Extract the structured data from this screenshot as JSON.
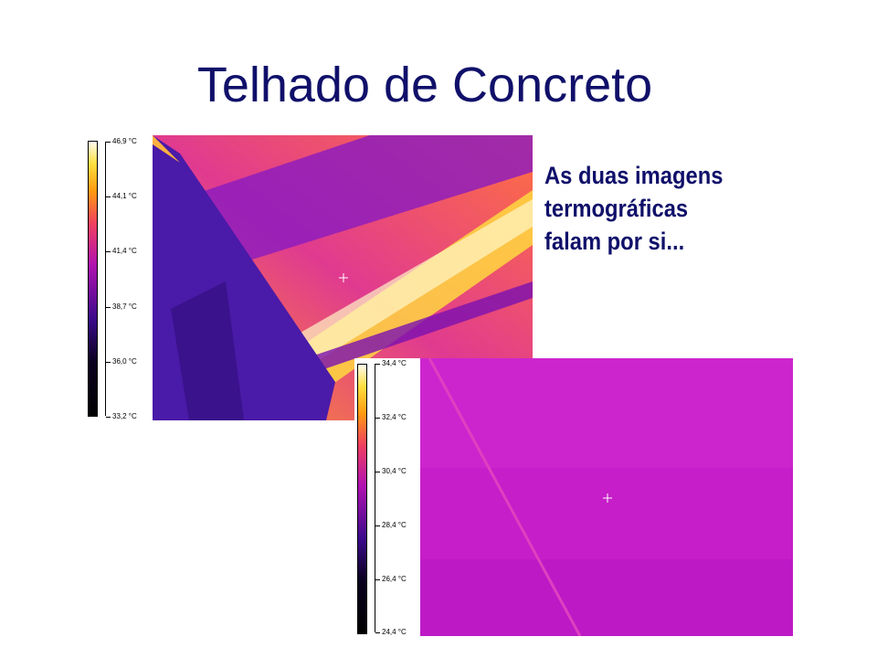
{
  "slide": {
    "title": "Telhado de Concreto",
    "caption_lines": [
      "As duas imagens",
      "termográficas",
      "falam por si..."
    ]
  },
  "thermal_images": [
    {
      "palette": "iron",
      "scale_labels": [
        "46,9 °C",
        "44,1 °C",
        "41,4 °C",
        "38,7 °C",
        "36,0 °C",
        "33,2 °C"
      ]
    },
    {
      "palette": "iron",
      "scale_labels": [
        "34,4 °C",
        "32,4 °C",
        "30,4 °C",
        "28,4 °C",
        "26,4 °C",
        "24,4 °C"
      ]
    }
  ],
  "colors": {
    "title": "#10106a",
    "caption": "#10106a"
  }
}
